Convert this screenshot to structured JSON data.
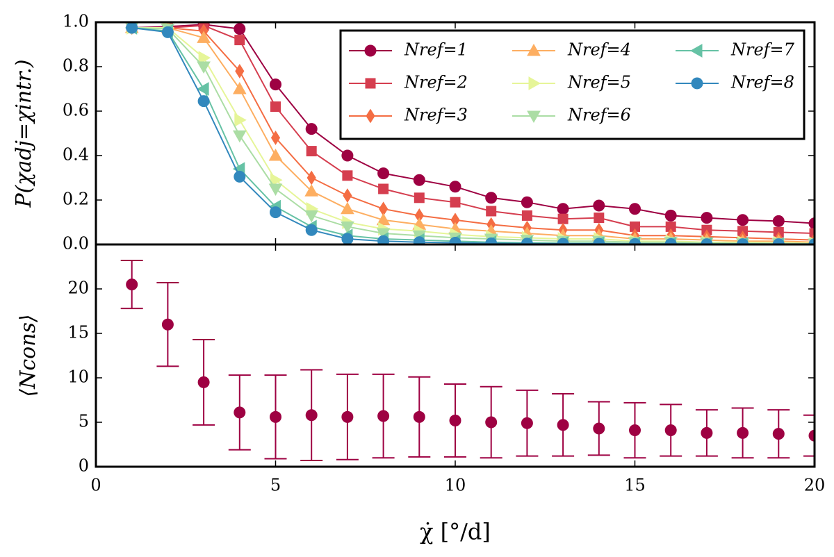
{
  "chart_data": [
    {
      "type": "line",
      "ylabel": "P(χadj=χintr.)",
      "x": [
        1,
        2,
        3,
        4,
        5,
        6,
        7,
        8,
        9,
        10,
        11,
        12,
        13,
        14,
        15,
        16,
        17,
        18,
        19,
        20
      ],
      "xlim": [
        0,
        20
      ],
      "xticks": [
        0,
        5,
        10,
        15,
        20
      ],
      "ylim": [
        0,
        1
      ],
      "yticks": [
        {
          "value": 0,
          "label": "0.0"
        },
        {
          "value": 0.2,
          "label": "0.2"
        },
        {
          "value": 0.4,
          "label": "0.4"
        },
        {
          "value": 0.6,
          "label": "0.6"
        },
        {
          "value": 0.8,
          "label": "0.8"
        },
        {
          "value": 1,
          "label": "1.0"
        }
      ],
      "legend": "upper right",
      "series": [
        {
          "name": "Nref=1",
          "color": "#9e0142",
          "marker": "circle",
          "values": [
            0.975,
            0.98,
            0.99,
            0.97,
            0.72,
            0.52,
            0.4,
            0.32,
            0.29,
            0.26,
            0.21,
            0.19,
            0.16,
            0.175,
            0.16,
            0.13,
            0.12,
            0.11,
            0.105,
            0.095
          ]
        },
        {
          "name": "Nref=2",
          "color": "#d53e4f",
          "marker": "square",
          "values": [
            0.975,
            0.975,
            0.985,
            0.92,
            0.62,
            0.42,
            0.31,
            0.25,
            0.21,
            0.19,
            0.15,
            0.13,
            0.115,
            0.12,
            0.08,
            0.08,
            0.065,
            0.06,
            0.055,
            0.05
          ]
        },
        {
          "name": "Nref=3",
          "color": "#f46d43",
          "marker": "diamond",
          "values": [
            0.975,
            0.975,
            0.96,
            0.78,
            0.48,
            0.3,
            0.22,
            0.16,
            0.13,
            0.11,
            0.09,
            0.075,
            0.065,
            0.065,
            0.04,
            0.04,
            0.035,
            0.03,
            0.025,
            0.02
          ]
        },
        {
          "name": "Nref=4",
          "color": "#fdae61",
          "marker": "triangle-up",
          "values": [
            0.975,
            0.975,
            0.93,
            0.7,
            0.4,
            0.24,
            0.16,
            0.11,
            0.09,
            0.07,
            0.06,
            0.05,
            0.04,
            0.04,
            0.025,
            0.025,
            0.02,
            0.015,
            0.015,
            0.01
          ]
        },
        {
          "name": "Nref=5",
          "color": "#e6f598",
          "marker": "triangle-right",
          "values": [
            0.975,
            0.975,
            0.84,
            0.56,
            0.29,
            0.16,
            0.1,
            0.07,
            0.06,
            0.045,
            0.035,
            0.03,
            0.025,
            0.025,
            0.015,
            0.015,
            0.01,
            0.01,
            0.008,
            0.005
          ]
        },
        {
          "name": "Nref=6",
          "color": "#abdda4",
          "marker": "triangle-down",
          "values": [
            0.975,
            0.97,
            0.8,
            0.49,
            0.25,
            0.13,
            0.08,
            0.05,
            0.04,
            0.03,
            0.025,
            0.02,
            0.015,
            0.015,
            0.01,
            0.01,
            0.008,
            0.005,
            0.005,
            0.003
          ]
        },
        {
          "name": "Nref=7",
          "color": "#66c2a5",
          "marker": "triangle-left",
          "values": [
            0.975,
            0.96,
            0.7,
            0.34,
            0.17,
            0.08,
            0.04,
            0.025,
            0.02,
            0.015,
            0.01,
            0.008,
            0.006,
            0.006,
            0.004,
            0.004,
            0.003,
            0.003,
            0.002,
            0.002
          ]
        },
        {
          "name": "Nref=8",
          "color": "#3288bd",
          "marker": "circle",
          "values": [
            0.975,
            0.955,
            0.645,
            0.305,
            0.145,
            0.065,
            0.025,
            0.015,
            0.01,
            0.008,
            0.005,
            0.004,
            0.003,
            0.003,
            0.002,
            0.002,
            0.001,
            0.001,
            0.001,
            0.001
          ]
        }
      ]
    },
    {
      "type": "errorbar",
      "xlabel": "χ̇ [°/d]",
      "ylabel": "⟨Ncons⟩",
      "x": [
        1,
        2,
        3,
        4,
        5,
        6,
        7,
        8,
        9,
        10,
        11,
        12,
        13,
        14,
        15,
        16,
        17,
        18,
        19,
        20
      ],
      "xlim": [
        0,
        20
      ],
      "xticks": [
        0,
        5,
        10,
        15,
        20
      ],
      "ylim": [
        0,
        25
      ],
      "yticks": [
        0,
        5,
        10,
        15,
        20
      ],
      "color": "#9e0142",
      "values": [
        20.5,
        16,
        9.5,
        6.1,
        5.6,
        5.8,
        5.6,
        5.7,
        5.6,
        5.2,
        5.0,
        4.9,
        4.7,
        4.3,
        4.1,
        4.1,
        3.8,
        3.8,
        3.7,
        3.5
      ],
      "errors": [
        2.7,
        4.7,
        4.8,
        4.2,
        4.7,
        5.1,
        4.8,
        4.7,
        4.5,
        4.1,
        4.0,
        3.7,
        3.5,
        3.0,
        3.1,
        2.9,
        2.6,
        2.8,
        2.7,
        2.3
      ]
    }
  ]
}
